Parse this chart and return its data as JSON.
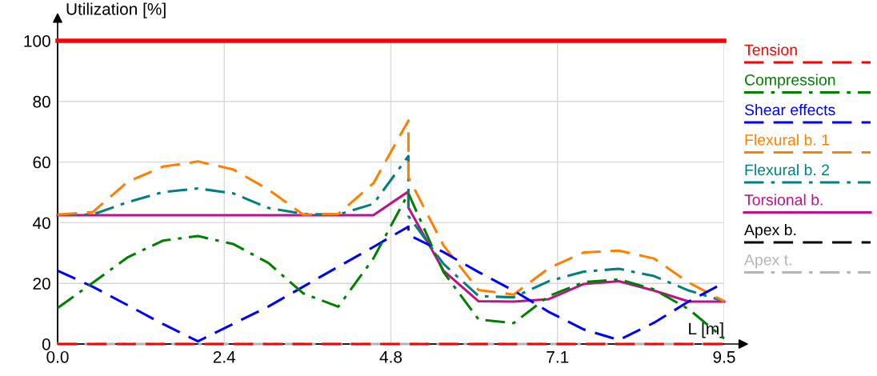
{
  "chart_data": {
    "type": "line",
    "xlabel": "L [m]",
    "ylabel": "Utilization [%]",
    "xlim": [
      0,
      9.5
    ],
    "ylim": [
      0,
      100
    ],
    "xticks": [
      {
        "value": 0,
        "label": "0.0"
      },
      {
        "value": 2.375,
        "label": "2.4"
      },
      {
        "value": 4.75,
        "label": "4.8"
      },
      {
        "value": 7.125,
        "label": "7.1"
      },
      {
        "value": 9.5,
        "label": "9.5"
      }
    ],
    "yticks": [
      0,
      20,
      40,
      60,
      80,
      100
    ],
    "grid": true,
    "legend": "right",
    "ref_lines": [
      {
        "axis": "y",
        "value": 100,
        "color": "#ff0000",
        "line_style": "solid"
      }
    ],
    "series": [
      {
        "name": "Tension",
        "color": "#ff0000",
        "line_style": "dashed",
        "x": [
          0,
          9.5
        ],
        "values": [
          0,
          0
        ]
      },
      {
        "name": "Compression",
        "color": "#008000",
        "line_style": "dashdot",
        "x": [
          0,
          0.5,
          1,
          1.5,
          2,
          2.5,
          3,
          3.5,
          4,
          4.5,
          5,
          5.5,
          6,
          6.5,
          7,
          7.5,
          8,
          8.5,
          9,
          9.5
        ],
        "values": [
          11.9,
          20.2,
          28.6,
          34.1,
          35.6,
          33,
          26.8,
          16.7,
          12.3,
          28.2,
          49.7,
          23.7,
          8.1,
          6.9,
          15.8,
          20.4,
          21.3,
          18,
          11.4,
          1.8
        ]
      },
      {
        "name": "Shear effects",
        "color": "#0000ff",
        "line_style": "dashed",
        "x": [
          0,
          0.5,
          1,
          1.5,
          2,
          2.5,
          3,
          3.5,
          4,
          4.5,
          5,
          5,
          5.5,
          6,
          6.5,
          7,
          7.5,
          8,
          8.5,
          9,
          9.5
        ],
        "values": [
          24.2,
          18.9,
          12.8,
          6.6,
          0.9,
          6.6,
          12.3,
          18.9,
          25.5,
          32,
          38.7,
          36,
          30.3,
          23.7,
          17.6,
          10.6,
          4.8,
          1.3,
          7,
          14.1,
          20.2
        ]
      },
      {
        "name": "Flexural b. 1",
        "color": "#ff8000",
        "line_style": "dashed",
        "x": [
          0,
          0.5,
          1,
          1.5,
          2,
          2.5,
          3,
          3.5,
          4,
          4.5,
          5,
          5,
          5.5,
          6,
          6.5,
          7,
          7.5,
          8,
          8.5,
          9,
          9.5
        ],
        "values": [
          42.7,
          43.5,
          53.5,
          58.5,
          60.2,
          57.6,
          51,
          42.7,
          42.9,
          53,
          73.7,
          55,
          32.5,
          17.8,
          16.3,
          25,
          30.2,
          30.8,
          28.2,
          20.2,
          14.1
        ]
      },
      {
        "name": "Flexural b. 2",
        "color": "#008080",
        "line_style": "dashdot",
        "x": [
          0,
          0.5,
          1,
          1.5,
          2,
          2.5,
          3,
          3.5,
          4,
          4.5,
          5,
          5,
          5.5,
          6,
          6.5,
          7,
          7.5,
          8,
          8.5,
          9,
          9.5
        ],
        "values": [
          42.7,
          42.7,
          46.8,
          50.1,
          51.3,
          49.7,
          44.9,
          42.9,
          42.7,
          46.2,
          62,
          42.2,
          26.4,
          15.8,
          15.4,
          20.7,
          23.9,
          24.8,
          22.4,
          17.6,
          14.1
        ]
      },
      {
        "name": "Torsional b.",
        "color": "#c0108a",
        "line_style": "solid",
        "x": [
          0,
          0.5,
          1,
          1.5,
          2,
          2.5,
          3,
          3.5,
          4,
          4.5,
          5,
          5,
          5.5,
          6,
          6.5,
          7,
          7.5,
          8,
          8.5,
          9,
          9.5
        ],
        "values": [
          42.5,
          42.5,
          42.5,
          42.5,
          42.5,
          42.5,
          42.5,
          42.5,
          42.5,
          42.5,
          50.3,
          45,
          24.2,
          14.1,
          14,
          14.8,
          19.8,
          20.7,
          17.6,
          14,
          14
        ]
      },
      {
        "name": "Apex b.",
        "color": "#000000",
        "line_style": "dashed"
      },
      {
        "name": "Apex t.",
        "color": "#b4b4b4",
        "line_style": "dashdot",
        "x": [
          0,
          9.5
        ],
        "values": [
          0,
          0
        ]
      }
    ]
  }
}
